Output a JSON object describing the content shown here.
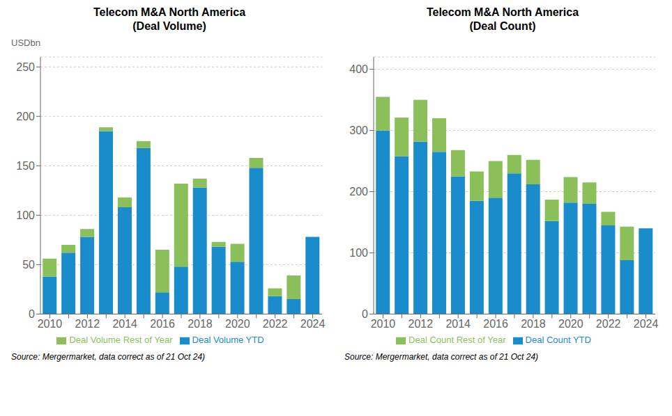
{
  "chart_data": [
    {
      "type": "bar",
      "title": "Telecom M&A North America\n(Deal Volume)",
      "ylabel": "USDbn",
      "categories": [
        "2010",
        null,
        "2012",
        null,
        "2014",
        null,
        "2016",
        null,
        "2018",
        null,
        "2020",
        null,
        "2022",
        null,
        "2024"
      ],
      "series": [
        {
          "name": "Deal Volume YTD",
          "color": "#1a8ccc",
          "values": [
            38,
            62,
            78,
            185,
            108,
            168,
            22,
            48,
            128,
            68,
            53,
            148,
            18,
            15,
            78
          ]
        },
        {
          "name": "Deal Volume Rest of Year",
          "color": "#8abf5a",
          "values": [
            18,
            8,
            8,
            4,
            10,
            7,
            43,
            84,
            9,
            5,
            18,
            10,
            8,
            24,
            0
          ]
        }
      ],
      "stacked": true,
      "ylim": [
        0,
        260
      ],
      "yticks": [
        0,
        50,
        100,
        150,
        200,
        250
      ],
      "grid": true,
      "legend": "bottom",
      "annotations": [
        "Source: Mergermarket, data correct as of 21 Oct 24)"
      ]
    },
    {
      "type": "bar",
      "title": "Telecom M&A North America\n(Deal Count)",
      "categories": [
        "2010",
        null,
        "2012",
        null,
        "2014",
        null,
        "2016",
        null,
        "2018",
        null,
        "2020",
        null,
        "2022",
        null,
        "2024"
      ],
      "series": [
        {
          "name": "Deal Count YTD",
          "color": "#1a8ccc",
          "values": [
            300,
            258,
            282,
            265,
            225,
            185,
            190,
            230,
            212,
            152,
            182,
            180,
            145,
            88,
            140
          ]
        },
        {
          "name": "Deal Count Rest of Year",
          "color": "#8abf5a",
          "values": [
            55,
            63,
            68,
            55,
            43,
            48,
            60,
            30,
            40,
            35,
            42,
            35,
            22,
            55,
            0
          ]
        }
      ],
      "stacked": true,
      "ylim": [
        0,
        420
      ],
      "yticks": [
        0,
        100,
        200,
        300,
        400
      ],
      "grid": true,
      "legend": "bottom",
      "annotations": [
        "Source: Mergermarket, data correct as of 21 Oct 24)"
      ]
    }
  ]
}
